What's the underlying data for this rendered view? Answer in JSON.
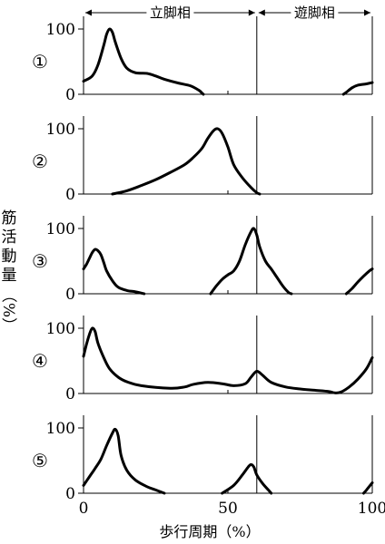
{
  "chart_data": {
    "type": "line",
    "phases": [
      {
        "label": "立脚相",
        "from": 0,
        "to": 60
      },
      {
        "label": "遊脚相",
        "from": 60,
        "to": 100
      }
    ],
    "stance_swing_boundary": 60,
    "xlabel": "歩行周期（%）",
    "ylabel": "筋活動量（%）",
    "ylabel_chars": [
      "筋",
      "活",
      "動",
      "量"
    ],
    "ylabel_unit": "（%）",
    "xlim": [
      0,
      100
    ],
    "ylim": [
      0,
      100
    ],
    "x_ticks": [
      0,
      50,
      100
    ],
    "y_ticks": [
      0,
      100
    ],
    "panels": [
      {
        "label": "①",
        "segments": [
          [
            [
              0,
              20
            ],
            [
              3,
              28
            ],
            [
              5,
              45
            ],
            [
              7,
              75
            ],
            [
              8,
              92
            ],
            [
              9,
              100
            ],
            [
              10,
              95
            ],
            [
              11,
              80
            ],
            [
              13,
              55
            ],
            [
              15,
              40
            ],
            [
              18,
              33
            ],
            [
              22,
              32
            ],
            [
              25,
              28
            ],
            [
              28,
              23
            ],
            [
              33,
              17
            ],
            [
              37,
              13
            ],
            [
              40,
              6
            ],
            [
              41,
              2
            ],
            [
              41.5,
              0
            ]
          ],
          [
            [
              90,
              0
            ],
            [
              91,
              3
            ],
            [
              93,
              10
            ],
            [
              95,
              14
            ],
            [
              98,
              16
            ],
            [
              100,
              18
            ]
          ]
        ]
      },
      {
        "label": "②",
        "segments": [
          [
            [
              10,
              0
            ],
            [
              15,
              5
            ],
            [
              20,
              13
            ],
            [
              25,
              22
            ],
            [
              30,
              33
            ],
            [
              35,
              45
            ],
            [
              38,
              56
            ],
            [
              41,
              70
            ],
            [
              43,
              85
            ],
            [
              45,
              97
            ],
            [
              46.5,
              100
            ],
            [
              48,
              93
            ],
            [
              50,
              72
            ],
            [
              52,
              45
            ],
            [
              55,
              25
            ],
            [
              58,
              10
            ],
            [
              60,
              2
            ],
            [
              61,
              0
            ]
          ]
        ]
      },
      {
        "label": "③",
        "segments": [
          [
            [
              0,
              38
            ],
            [
              1,
              45
            ],
            [
              2,
              54
            ],
            [
              3,
              63
            ],
            [
              4,
              68
            ],
            [
              5,
              66
            ],
            [
              6,
              60
            ],
            [
              7,
              48
            ],
            [
              8,
              35
            ],
            [
              10,
              20
            ],
            [
              12,
              10
            ],
            [
              15,
              5
            ],
            [
              18,
              3
            ],
            [
              21,
              0
            ]
          ],
          [
            [
              44,
              0
            ],
            [
              46,
              12
            ],
            [
              48,
              22
            ],
            [
              50,
              29
            ],
            [
              52,
              35
            ],
            [
              54,
              50
            ],
            [
              56,
              75
            ],
            [
              58,
              95
            ],
            [
              59,
              100
            ],
            [
              60,
              90
            ],
            [
              61,
              72
            ],
            [
              63,
              50
            ],
            [
              65,
              38
            ],
            [
              67,
              25
            ],
            [
              69,
              12
            ],
            [
              71,
              2
            ],
            [
              72,
              0
            ]
          ],
          [
            [
              91,
              0
            ],
            [
              93,
              8
            ],
            [
              95,
              18
            ],
            [
              97,
              27
            ],
            [
              99,
              35
            ],
            [
              100,
              38
            ]
          ]
        ]
      },
      {
        "label": "④",
        "segments": [
          [
            [
              0,
              57
            ],
            [
              1,
              75
            ],
            [
              2,
              90
            ],
            [
              3,
              100
            ],
            [
              4,
              95
            ],
            [
              5,
              77
            ],
            [
              7,
              55
            ],
            [
              9,
              38
            ],
            [
              12,
              25
            ],
            [
              15,
              18
            ],
            [
              20,
              12
            ],
            [
              30,
              8
            ],
            [
              35,
              10
            ],
            [
              38,
              14
            ],
            [
              43,
              17
            ],
            [
              48,
              15
            ],
            [
              52,
              12
            ],
            [
              56,
              15
            ],
            [
              58,
              25
            ],
            [
              60,
              34
            ],
            [
              62,
              28
            ],
            [
              65,
              17
            ],
            [
              70,
              10
            ],
            [
              75,
              7
            ],
            [
              80,
              5
            ],
            [
              85,
              3
            ],
            [
              87,
              1
            ],
            [
              89,
              2
            ],
            [
              92,
              10
            ],
            [
              95,
              22
            ],
            [
              98,
              38
            ],
            [
              100,
              55
            ]
          ]
        ]
      },
      {
        "label": "⑤",
        "segments": [
          [
            [
              0,
              12
            ],
            [
              2,
              25
            ],
            [
              4,
              38
            ],
            [
              6,
              52
            ],
            [
              8,
              73
            ],
            [
              10,
              92
            ],
            [
              11,
              98
            ],
            [
              12,
              88
            ],
            [
              13,
              58
            ],
            [
              15,
              35
            ],
            [
              18,
              20
            ],
            [
              22,
              10
            ],
            [
              25,
              5
            ],
            [
              28,
              0
            ]
          ],
          [
            [
              48,
              0
            ],
            [
              52,
              12
            ],
            [
              55,
              28
            ],
            [
              57,
              40
            ],
            [
              58,
              44
            ],
            [
              59,
              40
            ],
            [
              60,
              28
            ],
            [
              62,
              15
            ],
            [
              64,
              5
            ],
            [
              65,
              0
            ]
          ],
          [
            [
              97,
              0
            ],
            [
              98,
              5
            ],
            [
              100,
              16
            ]
          ]
        ]
      }
    ]
  }
}
